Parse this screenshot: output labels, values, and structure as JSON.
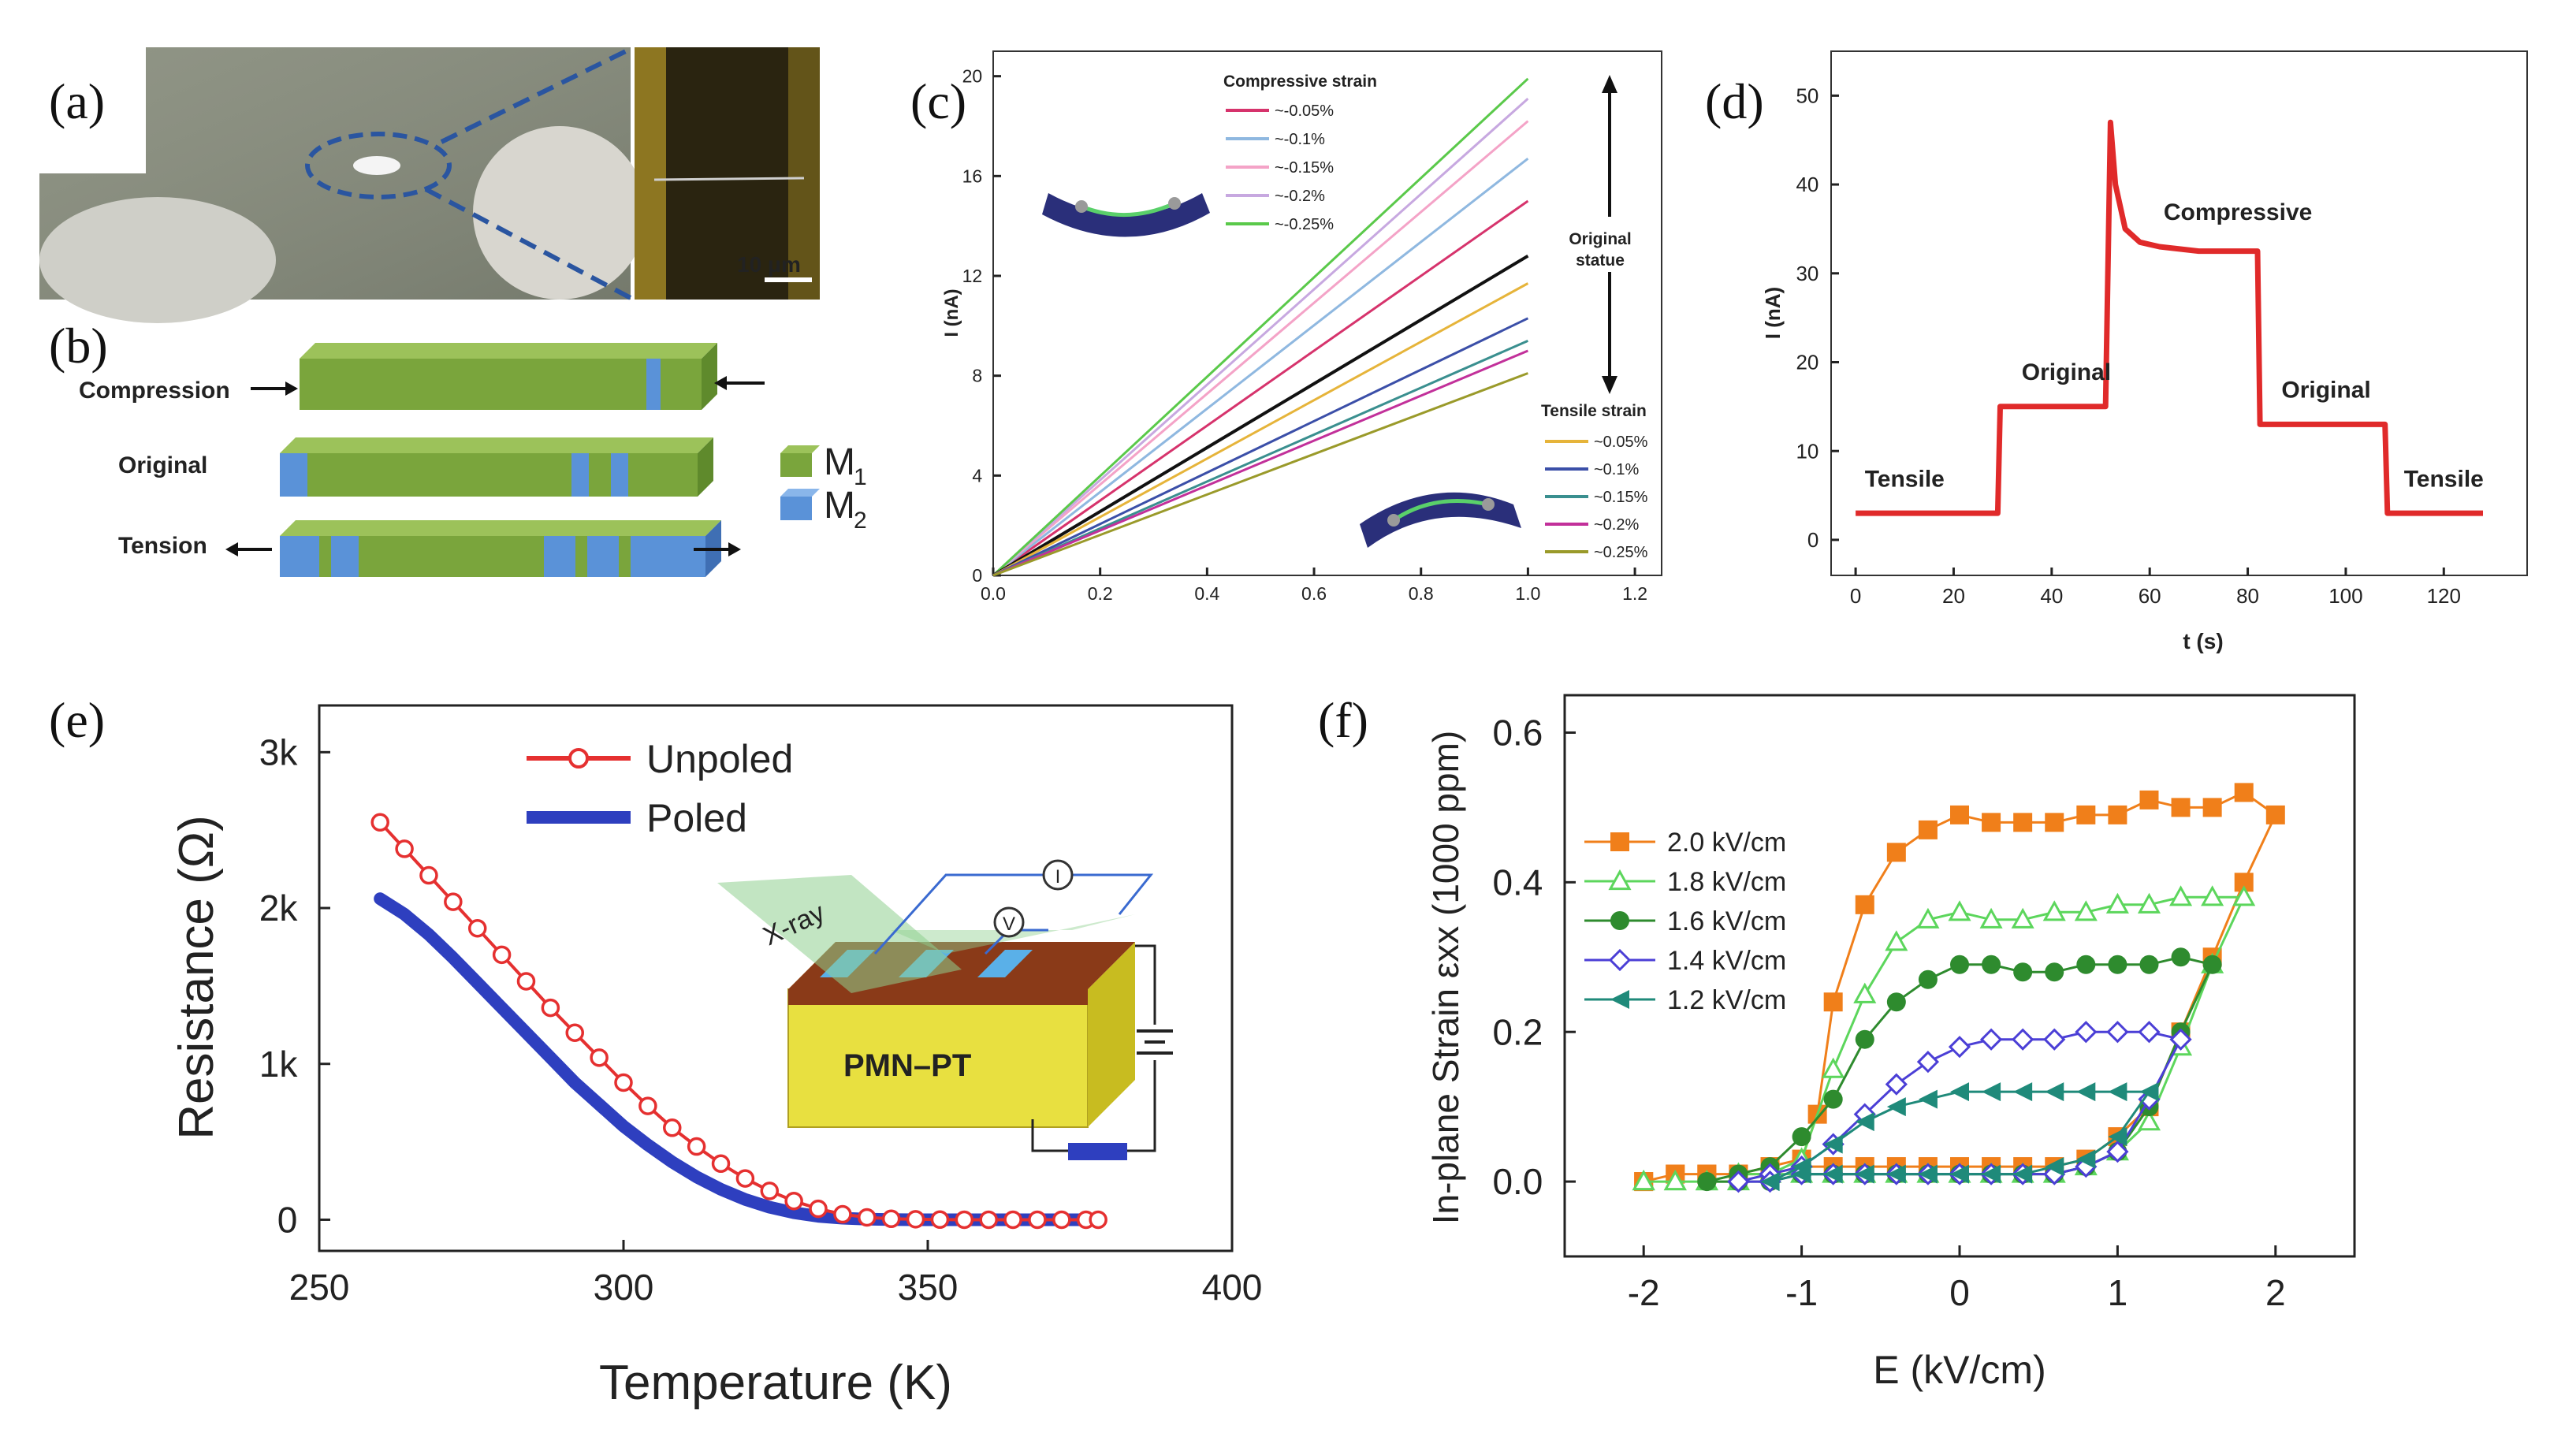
{
  "figure": {
    "panel_labels": [
      "(a)",
      "(b)",
      "(c)",
      "(d)",
      "(e)",
      "(f)"
    ]
  },
  "panel_a": {
    "scale_bar": "10 μm"
  },
  "panel_b": {
    "labels": [
      "Compression",
      "Original",
      "Tension"
    ],
    "legend": [
      {
        "name": "M",
        "sub": "1",
        "color": "#7aa53c"
      },
      {
        "name": "M",
        "sub": "2",
        "color": "#5a92d8"
      }
    ]
  },
  "chart_data": [
    {
      "id": "c",
      "type": "line",
      "xlabel": "",
      "ylabel": "I (nA)",
      "xlim": [
        0,
        1.25
      ],
      "ylim": [
        0,
        21
      ],
      "xticks": [
        "0.0",
        "0.2",
        "0.4",
        "0.6",
        "0.8",
        "1.0",
        "1.2"
      ],
      "yticks": [
        "0",
        "4",
        "8",
        "12",
        "16",
        "20"
      ],
      "legend_compressive_title": "Compressive strain",
      "legend_tensile_title": "Tensile strain",
      "original_label_1": "Original",
      "original_label_2": "statue",
      "series": [
        {
          "name": "~-0.05%",
          "group": "compressive",
          "color": "#d6336c",
          "x": [
            0,
            1.0
          ],
          "y": [
            0,
            15.0
          ]
        },
        {
          "name": "~-0.1%",
          "group": "compressive",
          "color": "#8fb8e0",
          "x": [
            0,
            1.0
          ],
          "y": [
            0,
            16.7
          ]
        },
        {
          "name": "~-0.15%",
          "group": "compressive",
          "color": "#f4a3c7",
          "x": [
            0,
            1.0
          ],
          "y": [
            0,
            18.2
          ]
        },
        {
          "name": "~-0.2%",
          "group": "compressive",
          "color": "#c7a8e0",
          "x": [
            0,
            1.0
          ],
          "y": [
            0,
            19.1
          ]
        },
        {
          "name": "~-0.25%",
          "group": "compressive",
          "color": "#5ac94a",
          "x": [
            0,
            1.0
          ],
          "y": [
            0,
            19.9
          ]
        },
        {
          "name": "Original",
          "group": "original",
          "color": "#111111",
          "x": [
            0,
            1.0
          ],
          "y": [
            0,
            12.8
          ]
        },
        {
          "name": "~0.05%",
          "group": "tensile",
          "color": "#e6b43a",
          "x": [
            0,
            1.0
          ],
          "y": [
            0,
            11.7
          ]
        },
        {
          "name": "~0.1%",
          "group": "tensile",
          "color": "#3b4fa8",
          "x": [
            0,
            1.0
          ],
          "y": [
            0,
            10.3
          ]
        },
        {
          "name": "~0.15%",
          "group": "tensile",
          "color": "#3a8f8f",
          "x": [
            0,
            1.0
          ],
          "y": [
            0,
            9.4
          ]
        },
        {
          "name": "~0.2%",
          "group": "tensile",
          "color": "#c2309a",
          "x": [
            0,
            1.0
          ],
          "y": [
            0,
            9.0
          ]
        },
        {
          "name": "~0.25%",
          "group": "tensile",
          "color": "#9a9a2a",
          "x": [
            0,
            1.0
          ],
          "y": [
            0,
            8.1
          ]
        }
      ]
    },
    {
      "id": "d",
      "type": "line",
      "xlabel": "t (s)",
      "ylabel": "I (nA)",
      "xlim": [
        -5,
        137
      ],
      "ylim": [
        -4,
        55
      ],
      "xticks": [
        0,
        20,
        40,
        60,
        80,
        100,
        120
      ],
      "yticks": [
        0,
        10,
        20,
        30,
        40,
        50
      ],
      "color": "#e02a2a",
      "x": [
        0,
        29,
        29.5,
        51,
        52,
        53,
        55,
        58,
        62,
        70,
        82,
        82.5,
        108,
        108.5,
        128
      ],
      "y": [
        3,
        3,
        15,
        15,
        47,
        40,
        35,
        33.5,
        33,
        32.5,
        32.5,
        13,
        13,
        3,
        3
      ],
      "annotations": [
        {
          "text": "Tensile",
          "x": 10,
          "y": 6
        },
        {
          "text": "Original",
          "x": 43,
          "y": 18
        },
        {
          "text": "Compressive",
          "x": 78,
          "y": 36
        },
        {
          "text": "Original",
          "x": 96,
          "y": 16
        },
        {
          "text": "Tensile",
          "x": 120,
          "y": 6
        }
      ]
    },
    {
      "id": "e",
      "type": "line",
      "xlabel": "Temperature (K)",
      "ylabel": "Resistance (Ω)",
      "xlim": [
        250,
        400
      ],
      "ylim": [
        -200,
        3300
      ],
      "xticks": [
        250,
        300,
        350,
        400
      ],
      "yticks": [
        0,
        1000,
        2000,
        3000
      ],
      "ytick_labels": [
        "0",
        "1k",
        "2k",
        "3k"
      ],
      "inset_labels": [
        "X-ray",
        "I",
        "V",
        "PMN–PT"
      ],
      "series": [
        {
          "name": "Unpoled",
          "color": "#e53030",
          "style": "open-circle",
          "x": [
            260,
            264,
            268,
            272,
            276,
            280,
            284,
            288,
            292,
            296,
            300,
            304,
            308,
            312,
            316,
            320,
            324,
            328,
            332,
            336,
            340,
            344,
            348,
            352,
            356,
            360,
            364,
            368,
            372,
            376,
            378
          ],
          "y": [
            2550,
            2380,
            2210,
            2040,
            1870,
            1700,
            1530,
            1360,
            1200,
            1040,
            880,
            730,
            590,
            470,
            360,
            265,
            185,
            120,
            70,
            35,
            15,
            6,
            3,
            1,
            0,
            0,
            0,
            0,
            0,
            0,
            0
          ]
        },
        {
          "name": "Poled",
          "color": "#2e3fbf",
          "style": "thick-line",
          "x": [
            260,
            264,
            268,
            272,
            276,
            280,
            284,
            288,
            292,
            296,
            300,
            304,
            308,
            312,
            316,
            320,
            324,
            328,
            332,
            336,
            340,
            344,
            348,
            352,
            360,
            378
          ],
          "y": [
            2060,
            1960,
            1830,
            1680,
            1520,
            1360,
            1200,
            1040,
            880,
            740,
            600,
            480,
            370,
            275,
            195,
            130,
            80,
            45,
            22,
            10,
            4,
            1,
            0,
            0,
            0,
            0
          ]
        }
      ]
    },
    {
      "id": "f",
      "type": "scatter",
      "xlabel": "E (kV/cm)",
      "ylabel": "In-plane Strain εxx (1000 ppm)",
      "xlim": [
        -2.5,
        2.5
      ],
      "ylim": [
        -0.1,
        0.65
      ],
      "xticks": [
        -2,
        -1,
        0,
        1,
        2
      ],
      "yticks": [
        "0.0",
        "0.2",
        "0.4",
        "0.6"
      ],
      "series": [
        {
          "name": "2.0 kV/cm",
          "color": "#f07f1a",
          "marker": "square-filled",
          "x": [
            -2.0,
            -1.8,
            -1.6,
            -1.4,
            -1.2,
            -1.0,
            -0.9,
            -0.8,
            -0.6,
            -0.4,
            -0.2,
            0.0,
            0.2,
            0.4,
            0.6,
            0.8,
            1.0,
            1.2,
            1.4,
            1.6,
            1.8,
            2.0,
            1.8,
            1.6,
            1.4,
            1.2,
            1.0,
            0.8,
            0.6,
            0.4,
            0.2,
            0.0,
            -0.2,
            -0.4,
            -0.6,
            -0.8,
            -1.0,
            -1.2,
            -1.4,
            -1.6,
            -1.8,
            -2.0
          ],
          "y": [
            0.0,
            0.01,
            0.01,
            0.01,
            0.02,
            0.03,
            0.09,
            0.24,
            0.37,
            0.44,
            0.47,
            0.49,
            0.48,
            0.48,
            0.48,
            0.49,
            0.49,
            0.51,
            0.5,
            0.5,
            0.52,
            0.49,
            0.4,
            0.3,
            0.2,
            0.1,
            0.06,
            0.03,
            0.02,
            0.02,
            0.02,
            0.02,
            0.02,
            0.02,
            0.02,
            0.02,
            0.02,
            0.01,
            0.01,
            0.01,
            0.01,
            0.0
          ]
        },
        {
          "name": "1.8 kV/cm",
          "color": "#5cd65c",
          "marker": "triangle-open",
          "x": [
            -2.0,
            -1.8,
            -1.6,
            -1.4,
            -1.2,
            -1.0,
            -0.8,
            -0.6,
            -0.4,
            -0.2,
            0.0,
            0.2,
            0.4,
            0.6,
            0.8,
            1.0,
            1.2,
            1.4,
            1.6,
            1.8,
            1.6,
            1.4,
            1.2,
            1.0,
            0.8,
            0.6,
            0.4,
            0.2,
            0.0,
            -0.2,
            -0.4,
            -0.6,
            -0.8,
            -1.0,
            -1.2,
            -1.4,
            -1.6,
            -1.8,
            -2.0
          ],
          "y": [
            0.0,
            0.0,
            0.0,
            0.01,
            0.01,
            0.03,
            0.15,
            0.25,
            0.32,
            0.35,
            0.36,
            0.35,
            0.35,
            0.36,
            0.36,
            0.37,
            0.37,
            0.38,
            0.38,
            0.38,
            0.29,
            0.18,
            0.08,
            0.04,
            0.02,
            0.01,
            0.01,
            0.01,
            0.01,
            0.01,
            0.01,
            0.01,
            0.01,
            0.01,
            0.01,
            0.0,
            0.0,
            0.0,
            0.0
          ]
        },
        {
          "name": "1.6 kV/cm",
          "color": "#2e8b2e",
          "marker": "circle-filled",
          "x": [
            -1.6,
            -1.4,
            -1.2,
            -1.0,
            -0.8,
            -0.6,
            -0.4,
            -0.2,
            0.0,
            0.2,
            0.4,
            0.6,
            0.8,
            1.0,
            1.2,
            1.4,
            1.6,
            1.4,
            1.2,
            1.0,
            0.8,
            0.6,
            0.4,
            0.2,
            0.0,
            -0.2,
            -0.4,
            -0.6,
            -0.8,
            -1.0,
            -1.2,
            -1.4,
            -1.6
          ],
          "y": [
            0.0,
            0.01,
            0.02,
            0.06,
            0.11,
            0.19,
            0.24,
            0.27,
            0.29,
            0.29,
            0.28,
            0.28,
            0.29,
            0.29,
            0.29,
            0.3,
            0.29,
            0.2,
            0.1,
            0.04,
            0.02,
            0.01,
            0.01,
            0.01,
            0.01,
            0.01,
            0.01,
            0.01,
            0.01,
            0.01,
            0.0,
            0.0,
            0.0
          ]
        },
        {
          "name": "1.4 kV/cm",
          "color": "#4b3fd6",
          "marker": "diamond-open",
          "x": [
            -1.4,
            -1.2,
            -1.0,
            -0.8,
            -0.6,
            -0.4,
            -0.2,
            0.0,
            0.2,
            0.4,
            0.6,
            0.8,
            1.0,
            1.2,
            1.4,
            1.2,
            1.0,
            0.8,
            0.6,
            0.4,
            0.2,
            0.0,
            -0.2,
            -0.4,
            -0.6,
            -0.8,
            -1.0,
            -1.2,
            -1.4
          ],
          "y": [
            0.0,
            0.01,
            0.02,
            0.05,
            0.09,
            0.13,
            0.16,
            0.18,
            0.19,
            0.19,
            0.19,
            0.2,
            0.2,
            0.2,
            0.19,
            0.11,
            0.04,
            0.02,
            0.01,
            0.01,
            0.01,
            0.01,
            0.01,
            0.01,
            0.01,
            0.01,
            0.01,
            0.0,
            0.0
          ]
        },
        {
          "name": "1.2 kV/cm",
          "color": "#1f8a7a",
          "marker": "triangle-left-filled",
          "x": [
            -1.2,
            -1.0,
            -0.8,
            -0.6,
            -0.4,
            -0.2,
            0.0,
            0.2,
            0.4,
            0.6,
            0.8,
            1.0,
            1.2,
            1.0,
            0.8,
            0.6,
            0.4,
            0.2,
            0.0,
            -0.2,
            -0.4,
            -0.6,
            -0.8,
            -1.0,
            -1.2
          ],
          "y": [
            0.0,
            0.02,
            0.05,
            0.08,
            0.1,
            0.11,
            0.12,
            0.12,
            0.12,
            0.12,
            0.12,
            0.12,
            0.12,
            0.06,
            0.03,
            0.02,
            0.01,
            0.01,
            0.01,
            0.01,
            0.01,
            0.01,
            0.01,
            0.01,
            0.0
          ]
        }
      ]
    }
  ]
}
